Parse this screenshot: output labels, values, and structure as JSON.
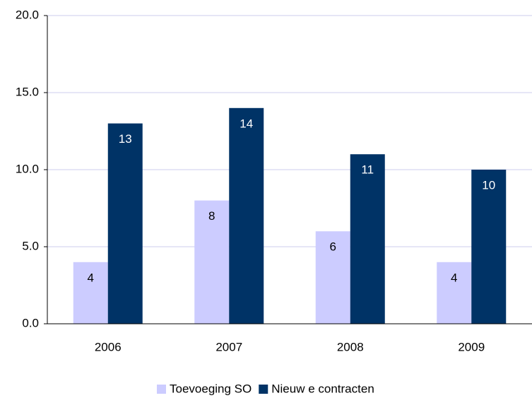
{
  "chart_data": {
    "type": "bar",
    "categories": [
      "2006",
      "2007",
      "2008",
      "2009"
    ],
    "series": [
      {
        "name": "Toevoeging SO",
        "color": "#ccccff",
        "values": [
          4,
          8,
          6,
          4
        ]
      },
      {
        "name": "Nieuw e contracten",
        "color": "#003366",
        "values": [
          13,
          14,
          11,
          10
        ]
      }
    ],
    "ylim": [
      0,
      20
    ],
    "yticks": [
      {
        "value": 0,
        "label": "0.0"
      },
      {
        "value": 5,
        "label": "5.0"
      },
      {
        "value": 10,
        "label": "10.0"
      },
      {
        "value": 15,
        "label": "15.0"
      },
      {
        "value": 20,
        "label": "20.0"
      }
    ],
    "grid": true,
    "legend": "bottom"
  }
}
